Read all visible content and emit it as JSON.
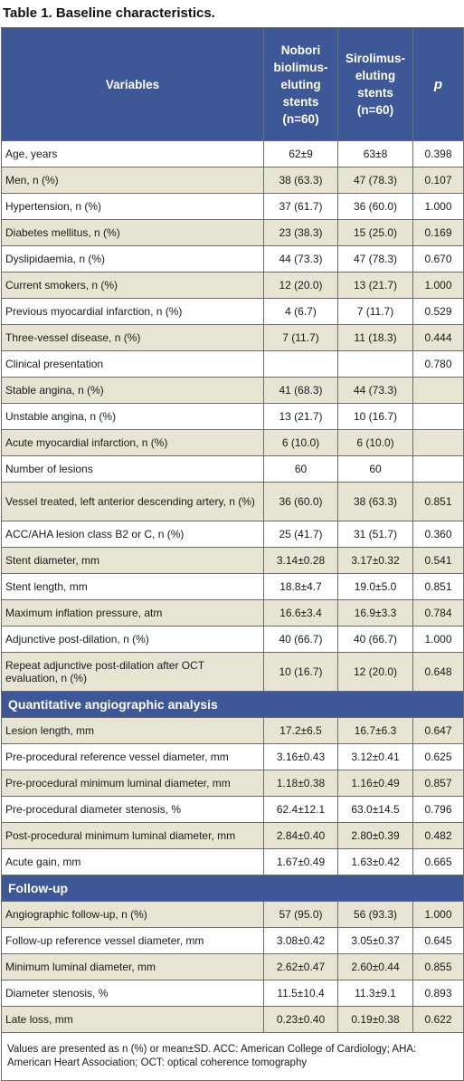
{
  "title": "Table 1. Baseline characteristics.",
  "headers": {
    "variables": "Variables",
    "nobori": [
      "Nobori",
      "biolimus-",
      "eluting",
      "stents",
      "(n=60)"
    ],
    "sirolimus": [
      "Sirolimus-",
      "eluting",
      "stents",
      "(n=60)"
    ],
    "p": "p"
  },
  "rows_baseline": [
    {
      "label": "Age, years",
      "nobori": "62±9",
      "sirolimus": "63±8",
      "p": "0.398"
    },
    {
      "label": "Men, n (%)",
      "nobori": "38 (63.3)",
      "sirolimus": "47 (78.3)",
      "p": "0.107"
    },
    {
      "label": "Hypertension, n (%)",
      "nobori": "37 (61.7)",
      "sirolimus": "36 (60.0)",
      "p": "1.000"
    },
    {
      "label": "Diabetes mellitus, n (%)",
      "nobori": "23 (38.3)",
      "sirolimus": "15 (25.0)",
      "p": "0.169"
    },
    {
      "label": "Dyslipidaemia, n (%)",
      "nobori": "44 (73.3)",
      "sirolimus": "47 (78.3)",
      "p": "0.670"
    },
    {
      "label": "Current smokers, n (%)",
      "nobori": "12 (20.0)",
      "sirolimus": "13 (21.7)",
      "p": "1.000"
    },
    {
      "label": "Previous myocardial infarction, n (%)",
      "nobori": "4 (6.7)",
      "sirolimus": "7 (11.7)",
      "p": "0.529"
    },
    {
      "label": "Three-vessel disease, n (%)",
      "nobori": "7 (11.7)",
      "sirolimus": "11 (18.3)",
      "p": "0.444"
    },
    {
      "label": "Clinical presentation",
      "nobori": "",
      "sirolimus": "",
      "p": "0.780"
    },
    {
      "label": "Stable angina, n (%)",
      "nobori": "41 (68.3)",
      "sirolimus": "44 (73.3)",
      "p": ""
    },
    {
      "label": "Unstable angina, n (%)",
      "nobori": "13 (21.7)",
      "sirolimus": "10 (16.7)",
      "p": ""
    },
    {
      "label": "Acute myocardial infarction, n (%)",
      "nobori": "6 (10.0)",
      "sirolimus": "6 (10.0)",
      "p": ""
    },
    {
      "label": "Number of lesions",
      "nobori": "60",
      "sirolimus": "60",
      "p": ""
    },
    {
      "label": "Vessel treated, left anterior descending artery, n (%)",
      "nobori": "36 (60.0)",
      "sirolimus": "38 (63.3)",
      "p": "0.851"
    },
    {
      "label": "ACC/AHA lesion class B2 or C, n (%)",
      "nobori": "25 (41.7)",
      "sirolimus": "31 (51.7)",
      "p": "0.360"
    },
    {
      "label": "Stent diameter, mm",
      "nobori": "3.14±0.28",
      "sirolimus": "3.17±0.32",
      "p": "0.541"
    },
    {
      "label": "Stent length, mm",
      "nobori": "18.8±4.7",
      "sirolimus": "19.0±5.0",
      "p": "0.851"
    },
    {
      "label": "Maximum inflation pressure, atm",
      "nobori": "16.6±3.4",
      "sirolimus": "16.9±3.3",
      "p": "0.784"
    },
    {
      "label": "Adjunctive post-dilation, n (%)",
      "nobori": "40 (66.7)",
      "sirolimus": "40 (66.7)",
      "p": "1.000"
    },
    {
      "label": "Repeat adjunctive post-dilation after OCT evaluation, n (%)",
      "nobori": "10 (16.7)",
      "sirolimus": "12 (20.0)",
      "p": "0.648"
    }
  ],
  "section_qca": "Quantitative angiographic analysis",
  "rows_qca": [
    {
      "label": "Lesion length, mm",
      "nobori": "17.2±6.5",
      "sirolimus": "16.7±6.3",
      "p": "0.647"
    },
    {
      "label": "Pre-procedural reference vessel diameter, mm",
      "nobori": "3.16±0.43",
      "sirolimus": "3.12±0.41",
      "p": "0.625"
    },
    {
      "label": "Pre-procedural minimum luminal diameter, mm",
      "nobori": "1.18±0.38",
      "sirolimus": "1.16±0.49",
      "p": "0.857"
    },
    {
      "label": "Pre-procedural diameter stenosis, %",
      "nobori": "62.4±12.1",
      "sirolimus": "63.0±14.5",
      "p": "0.796"
    },
    {
      "label": "Post-procedural minimum luminal diameter, mm",
      "nobori": "2.84±0.40",
      "sirolimus": "2.80±0.39",
      "p": "0.482"
    },
    {
      "label": "Acute gain, mm",
      "nobori": "1.67±0.49",
      "sirolimus": "1.63±0.42",
      "p": "0.665"
    }
  ],
  "section_followup": "Follow-up",
  "rows_followup": [
    {
      "label": "Angiographic follow-up, n (%)",
      "nobori": "57 (95.0)",
      "sirolimus": "56 (93.3)",
      "p": "1.000"
    },
    {
      "label": "Follow-up reference vessel diameter, mm",
      "nobori": "3.08±0.42",
      "sirolimus": "3.05±0.37",
      "p": "0.645"
    },
    {
      "label": "Minimum luminal diameter, mm",
      "nobori": "2.62±0.47",
      "sirolimus": "2.60±0.44",
      "p": "0.855"
    },
    {
      "label": "Diameter stenosis, %",
      "nobori": "11.5±10.4",
      "sirolimus": "11.3±9.1",
      "p": "0.893"
    },
    {
      "label": "Late loss, mm",
      "nobori": "0.23±0.40",
      "sirolimus": "0.19±0.38",
      "p": "0.622"
    }
  ],
  "footnote": "Values are presented as n (%) or mean±SD. ACC: American College of Cardiology; AHA: American Heart Association; OCT: optical coherence tomography",
  "colors": {
    "header_bg": "#3d5797",
    "alt_row": "#e7e4d3"
  }
}
